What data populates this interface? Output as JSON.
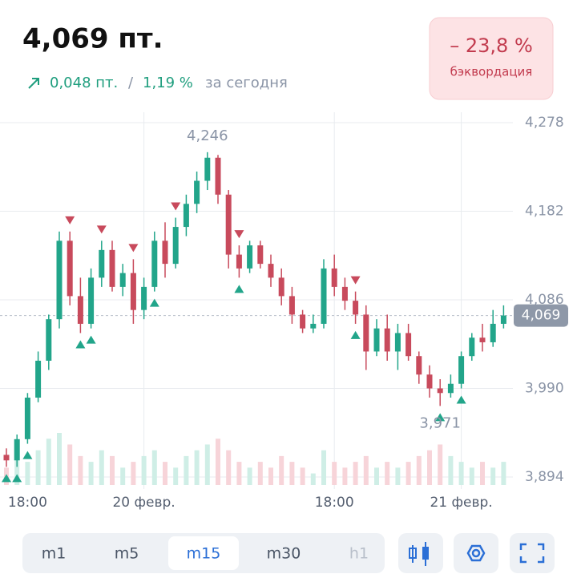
{
  "header": {
    "price": "4,069 пт.",
    "change_abs": "0,048 пт.",
    "separator": "/",
    "change_pct": "1,19 %",
    "period": "за сегодня",
    "badge_value": "– 23,8 %",
    "badge_label": "бэквордация"
  },
  "tabs": [
    "m1",
    "m5",
    "m15",
    "m30",
    "h1"
  ],
  "chart_data": {
    "type": "candlestick",
    "categories": [
      null,
      null,
      "18:00",
      null,
      null,
      null,
      null,
      null,
      null,
      null,
      null,
      null,
      null,
      "20 февр.",
      null,
      null,
      null,
      null,
      null,
      null,
      null,
      null,
      null,
      null,
      null,
      null,
      null,
      null,
      null,
      null,
      null,
      "18:00",
      null,
      null,
      null,
      null,
      null,
      null,
      null,
      null,
      null,
      null,
      null,
      "21 февр.",
      null,
      null,
      null,
      null
    ],
    "open": [
      3.918,
      3.912,
      3.935,
      3.98,
      4.02,
      4.065,
      4.15,
      4.09,
      4.06,
      4.11,
      4.14,
      4.1,
      4.115,
      4.075,
      4.1,
      4.15,
      4.125,
      4.165,
      4.19,
      4.215,
      4.24,
      4.2,
      4.135,
      4.12,
      4.145,
      4.125,
      4.11,
      4.09,
      4.07,
      4.055,
      4.06,
      4.12,
      4.1,
      4.085,
      4.07,
      4.03,
      4.055,
      4.03,
      4.05,
      4.025,
      4.005,
      3.99,
      3.985,
      3.995,
      4.025,
      4.045,
      4.04,
      4.06
    ],
    "high": [
      3.925,
      3.94,
      3.985,
      4.03,
      4.07,
      4.16,
      4.16,
      4.11,
      4.12,
      4.15,
      4.15,
      4.125,
      4.13,
      4.11,
      4.16,
      4.17,
      4.175,
      4.2,
      4.225,
      4.246,
      4.243,
      4.205,
      4.145,
      4.15,
      4.15,
      4.135,
      4.12,
      4.1,
      4.075,
      4.07,
      4.13,
      4.135,
      4.11,
      4.095,
      4.08,
      4.065,
      4.07,
      4.06,
      4.06,
      4.03,
      4.015,
      4.0,
      4.005,
      4.03,
      4.05,
      4.06,
      4.075,
      4.08
    ],
    "low": [
      3.905,
      3.905,
      3.93,
      3.975,
      4.01,
      4.055,
      4.08,
      4.05,
      4.055,
      4.1,
      4.095,
      4.09,
      4.06,
      4.065,
      4.095,
      4.11,
      4.12,
      4.155,
      4.18,
      4.205,
      4.19,
      4.12,
      4.11,
      4.115,
      4.12,
      4.1,
      4.08,
      4.06,
      4.05,
      4.05,
      4.055,
      4.09,
      4.075,
      4.06,
      4.01,
      4.025,
      4.02,
      4.01,
      4.02,
      3.995,
      3.98,
      3.971,
      3.98,
      3.99,
      4.02,
      4.03,
      4.035,
      4.055
    ],
    "close": [
      3.912,
      3.935,
      3.98,
      4.02,
      4.065,
      4.15,
      4.09,
      4.06,
      4.11,
      4.14,
      4.1,
      4.115,
      4.075,
      4.1,
      4.15,
      4.125,
      4.165,
      4.19,
      4.215,
      4.24,
      4.2,
      4.135,
      4.12,
      4.145,
      4.125,
      4.11,
      4.09,
      4.07,
      4.055,
      4.06,
      4.12,
      4.1,
      4.085,
      4.07,
      4.03,
      4.055,
      4.03,
      4.05,
      4.025,
      4.005,
      3.99,
      3.985,
      3.995,
      4.025,
      4.045,
      4.04,
      4.06,
      4.069
    ],
    "volumes": [
      3,
      5,
      4,
      6,
      8,
      9,
      7,
      5,
      4,
      6,
      5,
      3,
      4,
      5,
      6,
      4,
      3,
      5,
      6,
      7,
      8,
      6,
      4,
      3,
      4,
      3,
      5,
      4,
      3,
      2,
      6,
      4,
      3,
      4,
      5,
      3,
      4,
      3,
      4,
      5,
      6,
      7,
      5,
      4,
      3,
      4,
      3,
      4
    ],
    "buy_markers": [
      0,
      1,
      2,
      7,
      8,
      14,
      22,
      33,
      41,
      43
    ],
    "sell_markers": [
      6,
      9,
      12,
      16,
      22,
      33
    ],
    "ylim": [
      3.894,
      4.278
    ],
    "yticks": [
      {
        "value": 3.894,
        "label": "3,894"
      },
      {
        "value": 3.99,
        "label": "3,990"
      },
      {
        "value": 4.086,
        "label": "4,086"
      },
      {
        "value": 4.182,
        "label": "4,182"
      },
      {
        "value": 4.278,
        "label": "4,278"
      }
    ],
    "annotations": [
      {
        "value": 4.246,
        "label": "4,246"
      },
      {
        "value": 3.971,
        "label": "3,971"
      }
    ],
    "last_price": {
      "value": 4.069,
      "label": "4,069"
    },
    "up_color": "#22a58a",
    "down_color": "#c84a5c",
    "grid": true
  }
}
